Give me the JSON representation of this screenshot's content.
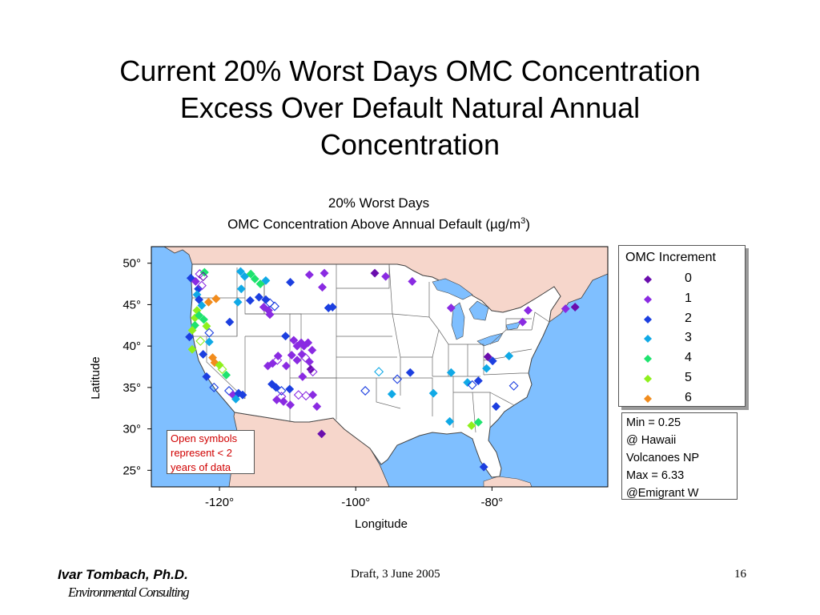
{
  "slide": {
    "title_lines": [
      "Current 20% Worst Days OMC Concentration",
      "Excess Over Default Natural Annual",
      "Concentration"
    ]
  },
  "footer": {
    "author": "Ivar Tombach, Ph.D.",
    "organization": "Environmental Consulting",
    "draft": "Draft, 3 June 2005",
    "page_number": "16"
  },
  "chart_data": {
    "type": "scatter",
    "title_line1": "20% Worst Days",
    "title_line2_prefix": "OMC Concentration Above Annual Default (",
    "title_line2_unit": "µg/m",
    "title_line2_sup": "3",
    "title_line2_suffix": ")",
    "xlabel": "Longitude",
    "ylabel": "Latitude",
    "xlim": [
      -130,
      -63
    ],
    "ylim": [
      23,
      52
    ],
    "xticks": [
      -120,
      -100,
      -80
    ],
    "xtick_labels": [
      "-120°",
      "-100°",
      "-80°"
    ],
    "yticks": [
      50,
      45,
      40,
      35,
      30,
      25
    ],
    "ytick_labels": [
      "50°",
      "45°",
      "40°",
      "35°",
      "30°",
      "25°"
    ],
    "legend": {
      "title": "OMC Increment",
      "placement": "right",
      "entries": [
        {
          "label": "0",
          "color": "#6a0dad"
        },
        {
          "label": "1",
          "color": "#8a2be2"
        },
        {
          "label": "2",
          "color": "#1c3fe0"
        },
        {
          "label": "3",
          "color": "#10a9e6"
        },
        {
          "label": "4",
          "color": "#1ee36e"
        },
        {
          "label": "5",
          "color": "#8ef01c"
        },
        {
          "label": "6",
          "color": "#f28c1c"
        }
      ]
    },
    "stats_lines": [
      "Min = 0.25",
      "@ Hawaii",
      "Volcanoes NP",
      "Max = 6.33",
      "@Emigrant W"
    ],
    "note_lines": [
      "Open symbols",
      "represent < 2",
      "years of data"
    ],
    "colors": {
      "ocean": "#7fbfff",
      "land_foreign": "#f6d6cb",
      "land_us": "#ffffff",
      "borders": "#444444"
    },
    "sites": [
      {
        "lon": -124.2,
        "lat": 48.2,
        "v": 2,
        "open": false
      },
      {
        "lon": -123.5,
        "lat": 47.8,
        "v": 1,
        "open": false
      },
      {
        "lon": -122.9,
        "lat": 48.7,
        "v": 1,
        "open": true
      },
      {
        "lon": -122.2,
        "lat": 48.9,
        "v": 4,
        "open": false
      },
      {
        "lon": -122.4,
        "lat": 48.4,
        "v": 0,
        "open": true
      },
      {
        "lon": -123.1,
        "lat": 46.9,
        "v": 2,
        "open": false
      },
      {
        "lon": -122.6,
        "lat": 47.3,
        "v": 1,
        "open": true
      },
      {
        "lon": -123.3,
        "lat": 46.2,
        "v": 3,
        "open": false
      },
      {
        "lon": -123.0,
        "lat": 45.6,
        "v": 2,
        "open": false
      },
      {
        "lon": -122.6,
        "lat": 44.9,
        "v": 3,
        "open": false
      },
      {
        "lon": -121.6,
        "lat": 45.3,
        "v": 6,
        "open": false
      },
      {
        "lon": -120.5,
        "lat": 45.7,
        "v": 6,
        "open": false
      },
      {
        "lon": -123.3,
        "lat": 44.3,
        "v": 5,
        "open": false
      },
      {
        "lon": -123.6,
        "lat": 43.4,
        "v": 5,
        "open": false
      },
      {
        "lon": -123.0,
        "lat": 43.7,
        "v": 4,
        "open": false
      },
      {
        "lon": -122.3,
        "lat": 43.2,
        "v": 4,
        "open": false
      },
      {
        "lon": -121.9,
        "lat": 42.4,
        "v": 5,
        "open": false
      },
      {
        "lon": -123.6,
        "lat": 42.5,
        "v": 4,
        "open": false
      },
      {
        "lon": -124.0,
        "lat": 41.9,
        "v": 5,
        "open": false
      },
      {
        "lon": -121.5,
        "lat": 41.6,
        "v": 2,
        "open": true
      },
      {
        "lon": -124.4,
        "lat": 41.1,
        "v": 2,
        "open": false
      },
      {
        "lon": -122.8,
        "lat": 40.6,
        "v": 5,
        "open": true
      },
      {
        "lon": -121.5,
        "lat": 40.5,
        "v": 3,
        "open": false
      },
      {
        "lon": -124.0,
        "lat": 39.6,
        "v": 5,
        "open": false
      },
      {
        "lon": -122.4,
        "lat": 39.0,
        "v": 2,
        "open": false
      },
      {
        "lon": -121.0,
        "lat": 38.6,
        "v": 6,
        "open": false
      },
      {
        "lon": -120.7,
        "lat": 38.0,
        "v": 6,
        "open": false
      },
      {
        "lon": -120.0,
        "lat": 37.7,
        "v": 5,
        "open": false
      },
      {
        "lon": -119.6,
        "lat": 37.2,
        "v": 5,
        "open": true
      },
      {
        "lon": -119.0,
        "lat": 36.5,
        "v": 4,
        "open": false
      },
      {
        "lon": -121.9,
        "lat": 36.3,
        "v": 2,
        "open": false
      },
      {
        "lon": -120.8,
        "lat": 35.0,
        "v": 2,
        "open": true
      },
      {
        "lon": -118.6,
        "lat": 34.6,
        "v": 2,
        "open": true
      },
      {
        "lon": -118.0,
        "lat": 34.1,
        "v": 1,
        "open": false
      },
      {
        "lon": -117.2,
        "lat": 34.3,
        "v": 2,
        "open": false
      },
      {
        "lon": -116.6,
        "lat": 34.1,
        "v": 2,
        "open": false
      },
      {
        "lon": -117.6,
        "lat": 33.6,
        "v": 3,
        "open": false
      },
      {
        "lon": -116.9,
        "lat": 49.0,
        "v": 3,
        "open": false
      },
      {
        "lon": -116.3,
        "lat": 48.4,
        "v": 3,
        "open": false
      },
      {
        "lon": -115.4,
        "lat": 48.7,
        "v": 4,
        "open": false
      },
      {
        "lon": -114.8,
        "lat": 48.1,
        "v": 4,
        "open": false
      },
      {
        "lon": -114.0,
        "lat": 47.5,
        "v": 4,
        "open": false
      },
      {
        "lon": -113.2,
        "lat": 47.9,
        "v": 3,
        "open": false
      },
      {
        "lon": -116.8,
        "lat": 46.9,
        "v": 3,
        "open": false
      },
      {
        "lon": -117.3,
        "lat": 45.3,
        "v": 3,
        "open": false
      },
      {
        "lon": -115.5,
        "lat": 45.5,
        "v": 2,
        "open": false
      },
      {
        "lon": -114.2,
        "lat": 45.9,
        "v": 2,
        "open": false
      },
      {
        "lon": -113.2,
        "lat": 45.6,
        "v": 2,
        "open": false
      },
      {
        "lon": -112.6,
        "lat": 45.2,
        "v": 2,
        "open": true
      },
      {
        "lon": -113.5,
        "lat": 44.7,
        "v": 1,
        "open": false
      },
      {
        "lon": -112.8,
        "lat": 44.3,
        "v": 1,
        "open": false
      },
      {
        "lon": -111.9,
        "lat": 44.8,
        "v": 2,
        "open": true
      },
      {
        "lon": -112.6,
        "lat": 43.8,
        "v": 1,
        "open": false
      },
      {
        "lon": -118.5,
        "lat": 42.9,
        "v": 2,
        "open": false
      },
      {
        "lon": -109.6,
        "lat": 47.7,
        "v": 2,
        "open": false
      },
      {
        "lon": -106.8,
        "lat": 48.6,
        "v": 1,
        "open": false
      },
      {
        "lon": -104.6,
        "lat": 48.8,
        "v": 1,
        "open": false
      },
      {
        "lon": -104.9,
        "lat": 47.1,
        "v": 1,
        "open": false
      },
      {
        "lon": -104.0,
        "lat": 44.6,
        "v": 2,
        "open": false
      },
      {
        "lon": -103.4,
        "lat": 44.7,
        "v": 2,
        "open": false
      },
      {
        "lon": -110.3,
        "lat": 41.2,
        "v": 2,
        "open": false
      },
      {
        "lon": -109.1,
        "lat": 40.7,
        "v": 1,
        "open": false
      },
      {
        "lon": -108.6,
        "lat": 40.0,
        "v": 1,
        "open": false
      },
      {
        "lon": -108.0,
        "lat": 40.4,
        "v": 1,
        "open": false
      },
      {
        "lon": -107.6,
        "lat": 40.0,
        "v": 1,
        "open": false
      },
      {
        "lon": -107.0,
        "lat": 40.4,
        "v": 1,
        "open": false
      },
      {
        "lon": -106.4,
        "lat": 39.5,
        "v": 1,
        "open": false
      },
      {
        "lon": -107.9,
        "lat": 39.0,
        "v": 1,
        "open": false
      },
      {
        "lon": -108.6,
        "lat": 38.3,
        "v": 1,
        "open": false
      },
      {
        "lon": -107.4,
        "lat": 38.6,
        "v": 1,
        "open": true
      },
      {
        "lon": -106.8,
        "lat": 38.1,
        "v": 1,
        "open": false
      },
      {
        "lon": -109.4,
        "lat": 38.9,
        "v": 1,
        "open": false
      },
      {
        "lon": -111.4,
        "lat": 38.8,
        "v": 1,
        "open": false
      },
      {
        "lon": -112.9,
        "lat": 37.6,
        "v": 1,
        "open": false
      },
      {
        "lon": -112.2,
        "lat": 37.9,
        "v": 1,
        "open": false
      },
      {
        "lon": -111.5,
        "lat": 38.3,
        "v": 1,
        "open": true
      },
      {
        "lon": -110.2,
        "lat": 37.6,
        "v": 1,
        "open": false
      },
      {
        "lon": -106.6,
        "lat": 37.2,
        "v": 0,
        "open": false
      },
      {
        "lon": -106.3,
        "lat": 36.9,
        "v": 1,
        "open": true
      },
      {
        "lon": -107.8,
        "lat": 36.3,
        "v": 1,
        "open": false
      },
      {
        "lon": -112.3,
        "lat": 35.4,
        "v": 2,
        "open": false
      },
      {
        "lon": -111.7,
        "lat": 35.0,
        "v": 2,
        "open": false
      },
      {
        "lon": -110.9,
        "lat": 34.6,
        "v": 2,
        "open": true
      },
      {
        "lon": -109.7,
        "lat": 34.8,
        "v": 2,
        "open": false
      },
      {
        "lon": -110.9,
        "lat": 33.9,
        "v": 1,
        "open": true
      },
      {
        "lon": -111.6,
        "lat": 33.5,
        "v": 1,
        "open": false
      },
      {
        "lon": -110.6,
        "lat": 33.3,
        "v": 1,
        "open": false
      },
      {
        "lon": -109.6,
        "lat": 32.9,
        "v": 1,
        "open": false
      },
      {
        "lon": -108.4,
        "lat": 34.1,
        "v": 1,
        "open": true
      },
      {
        "lon": -107.3,
        "lat": 34.0,
        "v": 1,
        "open": true
      },
      {
        "lon": -106.3,
        "lat": 34.1,
        "v": 1,
        "open": false
      },
      {
        "lon": -105.7,
        "lat": 32.7,
        "v": 1,
        "open": false
      },
      {
        "lon": -105.0,
        "lat": 29.4,
        "v": 0,
        "open": false
      },
      {
        "lon": -97.2,
        "lat": 48.8,
        "v": 0,
        "open": false
      },
      {
        "lon": -95.6,
        "lat": 48.4,
        "v": 1,
        "open": false
      },
      {
        "lon": -91.7,
        "lat": 47.8,
        "v": 1,
        "open": false
      },
      {
        "lon": -86.0,
        "lat": 44.6,
        "v": 1,
        "open": false
      },
      {
        "lon": -96.6,
        "lat": 36.9,
        "v": 3,
        "open": true
      },
      {
        "lon": -93.9,
        "lat": 36.0,
        "v": 2,
        "open": true
      },
      {
        "lon": -98.6,
        "lat": 34.6,
        "v": 2,
        "open": true
      },
      {
        "lon": -94.7,
        "lat": 34.2,
        "v": 3,
        "open": false
      },
      {
        "lon": -92.0,
        "lat": 36.8,
        "v": 2,
        "open": false
      },
      {
        "lon": -88.6,
        "lat": 34.3,
        "v": 3,
        "open": false
      },
      {
        "lon": -86.0,
        "lat": 36.8,
        "v": 3,
        "open": false
      },
      {
        "lon": -83.6,
        "lat": 35.6,
        "v": 3,
        "open": false
      },
      {
        "lon": -82.9,
        "lat": 35.3,
        "v": 2,
        "open": true
      },
      {
        "lon": -82.0,
        "lat": 35.8,
        "v": 2,
        "open": false
      },
      {
        "lon": -80.6,
        "lat": 38.7,
        "v": 0,
        "open": false
      },
      {
        "lon": -79.9,
        "lat": 38.2,
        "v": 2,
        "open": false
      },
      {
        "lon": -80.8,
        "lat": 37.3,
        "v": 3,
        "open": false
      },
      {
        "lon": -77.5,
        "lat": 38.8,
        "v": 3,
        "open": false
      },
      {
        "lon": -76.8,
        "lat": 35.2,
        "v": 2,
        "open": true
      },
      {
        "lon": -79.4,
        "lat": 32.7,
        "v": 2,
        "open": false
      },
      {
        "lon": -82.0,
        "lat": 30.8,
        "v": 4,
        "open": false
      },
      {
        "lon": -83.0,
        "lat": 30.4,
        "v": 5,
        "open": false
      },
      {
        "lon": -86.2,
        "lat": 30.9,
        "v": 3,
        "open": false
      },
      {
        "lon": -81.2,
        "lat": 25.4,
        "v": 2,
        "open": false
      },
      {
        "lon": -75.5,
        "lat": 42.9,
        "v": 1,
        "open": false
      },
      {
        "lon": -74.7,
        "lat": 44.3,
        "v": 1,
        "open": false
      },
      {
        "lon": -69.2,
        "lat": 44.5,
        "v": 1,
        "open": false
      },
      {
        "lon": -67.8,
        "lat": 44.7,
        "v": 0,
        "open": false
      }
    ]
  }
}
